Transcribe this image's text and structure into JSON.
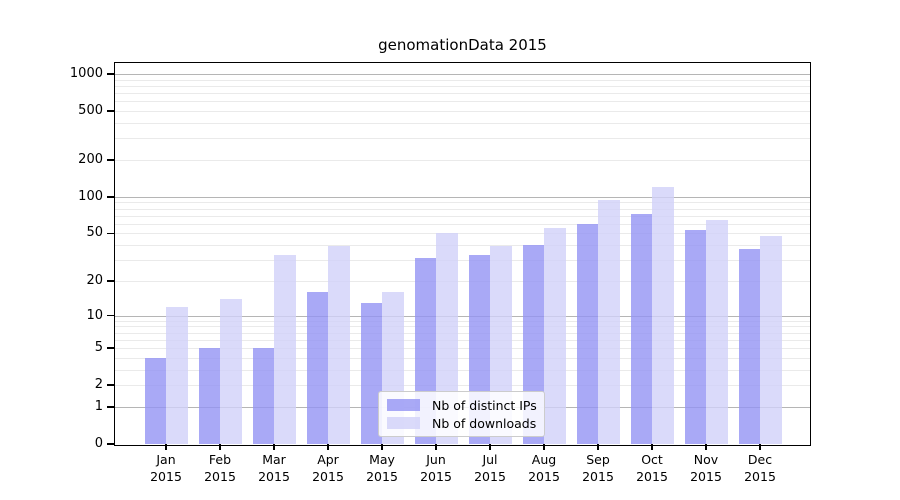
{
  "chart_data": {
    "type": "bar",
    "title": "genomationData 2015",
    "categories": [
      "Jan",
      "Feb",
      "Mar",
      "Apr",
      "May",
      "Jun",
      "Jul",
      "Aug",
      "Sep",
      "Oct",
      "Nov",
      "Dec"
    ],
    "x_year_label": "2015",
    "series": [
      {
        "name": "Nb of distinct IPs",
        "color": "#9494f4",
        "alpha": 0.8,
        "values": [
          4,
          5,
          5,
          16,
          13,
          31,
          33,
          40,
          60,
          72,
          53,
          37
        ]
      },
      {
        "name": "Nb of downloads",
        "color": "#d1d1f9",
        "alpha": 0.8,
        "values": [
          12,
          14,
          33,
          39,
          16,
          50,
          39,
          55,
          95,
          120,
          65,
          48
        ]
      }
    ],
    "y_scale": "log1p",
    "y_ticks": [
      0,
      1,
      2,
      5,
      10,
      20,
      50,
      100,
      200,
      500,
      1000
    ],
    "y_major_gridlines": [
      1,
      10,
      100,
      1000
    ],
    "y_minor_gridlines": [
      2,
      3,
      4,
      5,
      6,
      7,
      8,
      9,
      20,
      30,
      40,
      50,
      60,
      70,
      80,
      90,
      200,
      300,
      400,
      500,
      600,
      700,
      800,
      900
    ],
    "ylim": [
      0,
      1000
    ],
    "grid": true,
    "legend_position": "bottom-center"
  },
  "colors": {
    "major_grid": "#b5b5b5",
    "minor_grid": "#eaeaea",
    "axis": "#000000",
    "background": "#ffffff",
    "legend_border": "#cccccc",
    "text": "#000000"
  }
}
